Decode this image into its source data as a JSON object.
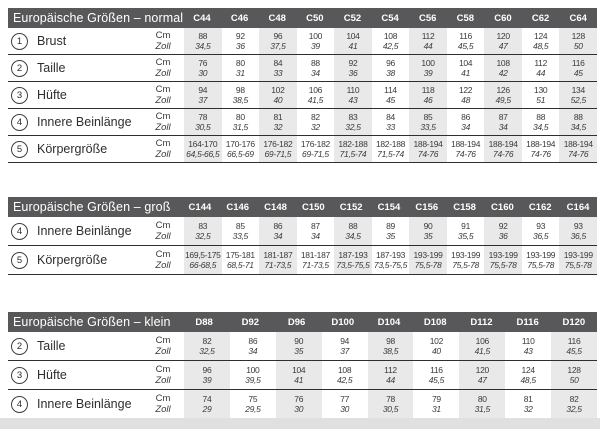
{
  "colors": {
    "header_bg": "#58585a",
    "header_text": "#ffffff",
    "body_text": "#3a3a3c",
    "shaded_column": "#e9e9e9",
    "row_rule": "#2f2f31",
    "footer_strip": "#e0e0e0"
  },
  "units": {
    "cm": "Cm",
    "zoll": "Zoll"
  },
  "tables": [
    {
      "title": "Europäische Größen – normal",
      "columns": [
        "C44",
        "C46",
        "C48",
        "C50",
        "C52",
        "C54",
        "C56",
        "C58",
        "C60",
        "C62",
        "C64"
      ],
      "rows": [
        {
          "num": "1",
          "label": "Brust",
          "cm": [
            "88",
            "92",
            "96",
            "100",
            "104",
            "108",
            "112",
            "116",
            "120",
            "124",
            "128"
          ],
          "zoll": [
            "34,5",
            "36",
            "37,5",
            "39",
            "41",
            "42,5",
            "44",
            "45,5",
            "47",
            "48,5",
            "50"
          ]
        },
        {
          "num": "2",
          "label": "Taille",
          "cm": [
            "76",
            "80",
            "84",
            "88",
            "92",
            "96",
            "100",
            "104",
            "108",
            "112",
            "116"
          ],
          "zoll": [
            "30",
            "31",
            "33",
            "34",
            "36",
            "38",
            "39",
            "41",
            "42",
            "44",
            "45"
          ]
        },
        {
          "num": "3",
          "label": "Hüfte",
          "cm": [
            "94",
            "98",
            "102",
            "106",
            "110",
            "114",
            "118",
            "122",
            "126",
            "130",
            "134"
          ],
          "zoll": [
            "37",
            "38,5",
            "40",
            "41,5",
            "43",
            "45",
            "46",
            "48",
            "49,5",
            "51",
            "52,5"
          ]
        },
        {
          "num": "4",
          "label": "Innere Beinlänge",
          "cm": [
            "78",
            "80",
            "81",
            "82",
            "83",
            "84",
            "85",
            "86",
            "87",
            "88",
            "88"
          ],
          "zoll": [
            "30,5",
            "31,5",
            "32",
            "32",
            "32,5",
            "33",
            "33,5",
            "34",
            "34",
            "34,5",
            "34,5"
          ]
        },
        {
          "num": "5",
          "label": "Körpergröße",
          "cm": [
            "164-170",
            "170-176",
            "176-182",
            "176-182",
            "182-188",
            "182-188",
            "188-194",
            "188-194",
            "188-194",
            "188-194",
            "188-194"
          ],
          "zoll": [
            "64,5-66,5",
            "66,5-69",
            "69-71,5",
            "69-71,5",
            "71,5-74",
            "71,5-74",
            "74-76",
            "74-76",
            "74-76",
            "74-76",
            "74-76"
          ]
        }
      ]
    },
    {
      "title": "Europäische Größen – groß",
      "columns": [
        "C144",
        "C146",
        "C148",
        "C150",
        "C152",
        "C154",
        "C156",
        "C158",
        "C160",
        "C162",
        "C164"
      ],
      "rows": [
        {
          "num": "4",
          "label": "Innere Beinlänge",
          "cm": [
            "83",
            "85",
            "86",
            "87",
            "88",
            "89",
            "90",
            "91",
            "92",
            "93",
            "93"
          ],
          "zoll": [
            "32,5",
            "33,5",
            "34",
            "34",
            "34,5",
            "35",
            "35",
            "35,5",
            "36",
            "36,5",
            "36,5"
          ]
        },
        {
          "num": "5",
          "label": "Körpergröße",
          "cm": [
            "169,5-175",
            "175-181",
            "181-187",
            "181-187",
            "187-193",
            "187-193",
            "193-199",
            "193-199",
            "193-199",
            "193-199",
            "193-199"
          ],
          "zoll": [
            "66-68,5",
            "68,5-71",
            "71-73,5",
            "71-73,5",
            "73,5-75,5",
            "73,5-75,5",
            "75,5-78",
            "75,5-78",
            "75,5-78",
            "75,5-78",
            "75,5-78"
          ]
        }
      ]
    },
    {
      "title": "Europäische Größen – klein",
      "columns": [
        "D88",
        "D92",
        "D96",
        "D100",
        "D104",
        "D108",
        "D112",
        "D116",
        "D120"
      ],
      "rows": [
        {
          "num": "2",
          "label": "Taille",
          "cm": [
            "82",
            "86",
            "90",
            "94",
            "98",
            "102",
            "106",
            "110",
            "116"
          ],
          "zoll": [
            "32,5",
            "34",
            "35",
            "37",
            "38,5",
            "40",
            "41,5",
            "43",
            "45,5"
          ]
        },
        {
          "num": "3",
          "label": "Hüfte",
          "cm": [
            "96",
            "100",
            "104",
            "108",
            "112",
            "116",
            "120",
            "124",
            "128"
          ],
          "zoll": [
            "39",
            "39,5",
            "41",
            "42,5",
            "44",
            "45,5",
            "47",
            "48,5",
            "50"
          ]
        },
        {
          "num": "4",
          "label": "Innere Beinlänge",
          "cm": [
            "74",
            "75",
            "76",
            "77",
            "78",
            "79",
            "80",
            "81",
            "82"
          ],
          "zoll": [
            "29",
            "29,5",
            "30",
            "30",
            "30,5",
            "31",
            "31,5",
            "32",
            "32,5"
          ]
        }
      ]
    }
  ]
}
